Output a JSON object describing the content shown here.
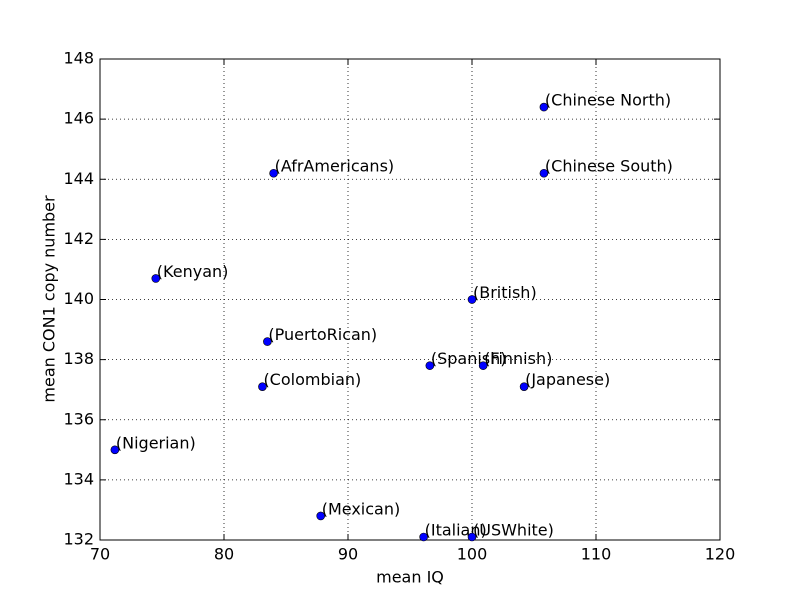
{
  "chart_data": {
    "type": "scatter",
    "x_label": "mean IQ",
    "y_label": "mean CON1 copy number",
    "labels": [
      "(Chinese North)",
      "(Chinese South)",
      "(AfrAmericans)",
      "(Kenyan)",
      "(British)",
      "(PuertoRican)",
      "(Spanish)",
      "(Finnish)",
      "(Japanese)",
      "(Colombian)",
      "(Nigerian)",
      "(Mexican)",
      "(Italian)",
      "(USWhite)"
    ],
    "x": [
      105.8,
      105.8,
      84.0,
      74.5,
      100.0,
      83.5,
      96.6,
      100.9,
      104.2,
      83.1,
      71.2,
      87.8,
      96.1,
      100.0
    ],
    "values": [
      146.4,
      144.2,
      144.2,
      140.7,
      140.0,
      138.6,
      137.8,
      137.8,
      137.1,
      137.1,
      135.0,
      132.8,
      132.1,
      132.1
    ],
    "color": "#0000ff",
    "xlim": [
      70,
      120
    ],
    "xticks": [
      70,
      80,
      90,
      100,
      110,
      120
    ],
    "ylim": [
      132,
      148
    ],
    "yticks": [
      132,
      134,
      136,
      138,
      140,
      142,
      144,
      146,
      148
    ],
    "grid": true
  }
}
